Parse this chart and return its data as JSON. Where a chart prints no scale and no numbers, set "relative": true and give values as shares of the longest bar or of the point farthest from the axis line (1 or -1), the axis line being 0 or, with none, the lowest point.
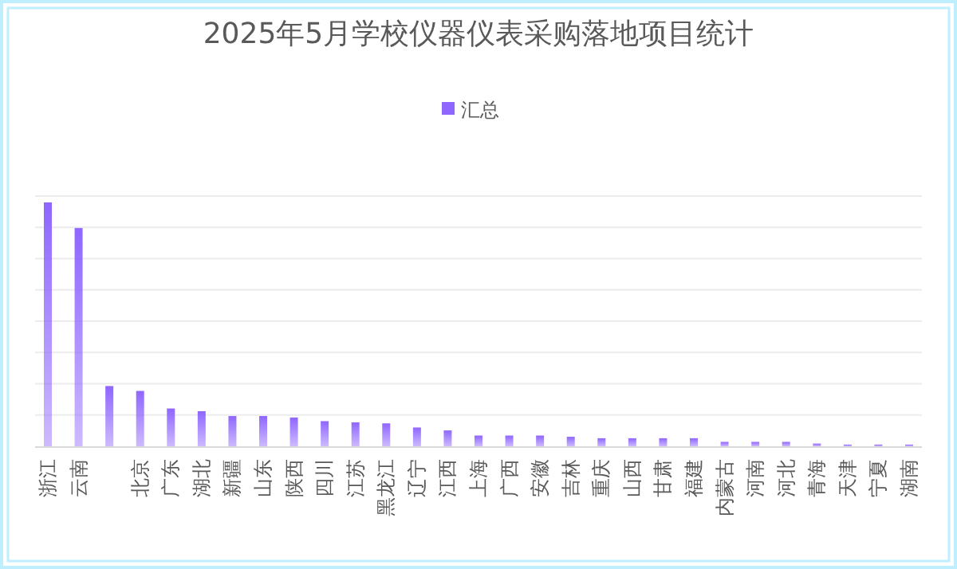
{
  "chart_data": {
    "type": "bar",
    "title": "2025年5月学校仪器仪表采购落地项目统计",
    "relative": true,
    "grid": "y",
    "legend": "top",
    "categories": [
      "浙江",
      "云南",
      null,
      "北京",
      "广东",
      "湖北",
      "新疆",
      "山东",
      "陕西",
      "四川",
      "江苏",
      "黑龙江",
      "辽宁",
      "江西",
      "上海",
      "广西",
      "安徽",
      "吉林",
      "重庆",
      "山西",
      "甘肃",
      "福建",
      "内蒙古",
      "河南",
      "河北",
      "青海",
      "天津",
      "宁夏",
      "湖南"
    ],
    "series": [
      {
        "name": "汇总",
        "color": "#8f66ff",
        "values": [
          1,
          0.895,
          0.247,
          0.227,
          0.155,
          0.144,
          0.124,
          0.124,
          0.118,
          0.103,
          0.098,
          0.094,
          0.077,
          0.065,
          0.044,
          0.044,
          0.044,
          0.039,
          0.033,
          0.033,
          0.033,
          0.033,
          0.018,
          0.018,
          0.018,
          0.011,
          0.007,
          0.007,
          0.007
        ]
      }
    ]
  }
}
